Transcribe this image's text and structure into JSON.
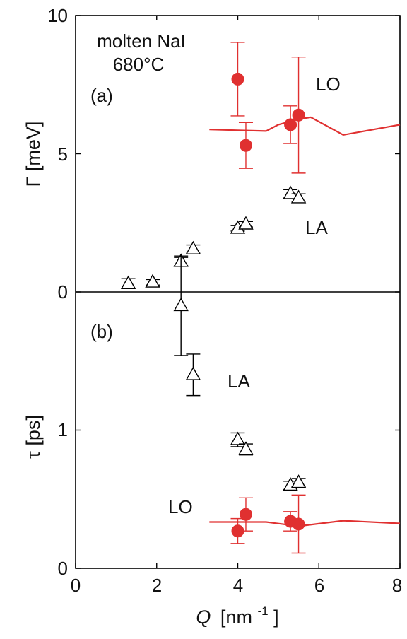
{
  "chart_data": [
    {
      "panel": "(a)",
      "type": "scatter",
      "annotations": [
        "molten NaI",
        "680°C",
        "(a)"
      ],
      "ylabel": "Γ [meV]",
      "xlim": [
        0,
        8
      ],
      "ylim": [
        0,
        10
      ],
      "yticks": [
        0,
        5,
        10
      ],
      "series": [
        {
          "name": "LO",
          "marker": "filled-circle",
          "color": "#e03030",
          "points": [
            {
              "x": 4.0,
              "y": 7.7,
              "err": 1.33
            },
            {
              "x": 4.2,
              "y": 5.3,
              "err": 0.83
            },
            {
              "x": 5.3,
              "y": 6.05,
              "err": 0.68
            },
            {
              "x": 5.5,
              "y": 6.4,
              "err": 2.1
            }
          ]
        },
        {
          "name": "LA",
          "marker": "open-triangle",
          "color": "#000000",
          "points": [
            {
              "x": 1.3,
              "y": 0.3,
              "err": 0.18
            },
            {
              "x": 1.9,
              "y": 0.35,
              "err": 0.1
            },
            {
              "x": 2.6,
              "y": 1.1,
              "err": 0.15
            },
            {
              "x": 2.9,
              "y": 1.55,
              "err": 0.15
            },
            {
              "x": 4.0,
              "y": 2.3,
              "err": 0.1
            },
            {
              "x": 4.2,
              "y": 2.45,
              "err": 0.1
            },
            {
              "x": 5.3,
              "y": 3.55,
              "err": 0.15
            },
            {
              "x": 5.5,
              "y": 3.4,
              "err": 0.15
            }
          ]
        },
        {
          "name": "LO",
          "style": "line",
          "color": "#e03030",
          "points": [
            {
              "x": 3.3,
              "y": 5.88
            },
            {
              "x": 4.0,
              "y": 5.85
            },
            {
              "x": 4.7,
              "y": 5.82
            },
            {
              "x": 5.0,
              "y": 6.05
            },
            {
              "x": 5.5,
              "y": 6.25
            },
            {
              "x": 5.8,
              "y": 6.32
            },
            {
              "x": 6.6,
              "y": 5.68
            },
            {
              "x": 8.0,
              "y": 6.05
            }
          ]
        }
      ]
    },
    {
      "panel": "(b)",
      "type": "scatter",
      "annotations": [
        "(b)"
      ],
      "xlabel": "Q [nm⁻¹]",
      "ylabel": "τ [ps]",
      "xlim": [
        0,
        8
      ],
      "ylim": [
        0,
        2
      ],
      "yticks": [
        0,
        1
      ],
      "xticks": [
        0,
        2,
        4,
        6,
        8
      ],
      "series": [
        {
          "name": "LA",
          "marker": "open-triangle",
          "color": "#000000",
          "points": [
            {
              "x": 2.6,
              "y": 1.9,
              "err": 0.36
            },
            {
              "x": 2.9,
              "y": 1.4,
              "err": 0.15
            },
            {
              "x": 4.0,
              "y": 0.93,
              "err": 0.05
            },
            {
              "x": 4.2,
              "y": 0.86,
              "err": 0.04
            },
            {
              "x": 5.3,
              "y": 0.6,
              "err": 0.03
            },
            {
              "x": 5.5,
              "y": 0.62,
              "err": 0.03
            }
          ]
        },
        {
          "name": "LO",
          "marker": "filled-circle",
          "color": "#e03030",
          "points": [
            {
              "x": 4.0,
              "y": 0.27,
              "err": 0.09
            },
            {
              "x": 4.2,
              "y": 0.39,
              "err": 0.12
            },
            {
              "x": 5.3,
              "y": 0.34,
              "err": 0.07
            },
            {
              "x": 5.5,
              "y": 0.32,
              "err": 0.21
            }
          ]
        },
        {
          "name": "LO",
          "style": "line",
          "color": "#e03030",
          "points": [
            {
              "x": 3.3,
              "y": 0.335
            },
            {
              "x": 4.7,
              "y": 0.335
            },
            {
              "x": 5.5,
              "y": 0.305
            },
            {
              "x": 6.6,
              "y": 0.345
            },
            {
              "x": 8.0,
              "y": 0.325
            }
          ]
        }
      ]
    }
  ],
  "labels": {
    "a_title1": "molten NaI",
    "a_title2": "680°C",
    "a_panel": "(a)",
    "a_lo": "LO",
    "a_la": "LA",
    "b_panel": "(b)",
    "b_la": "LA",
    "b_lo": "LO",
    "ylabel_a": "Γ [meV]",
    "ylabel_b": "τ [ps]",
    "xlabel_main": "Q",
    "xlabel_unit": "[nm",
    "xlabel_exp": "-1",
    "xlabel_close": "]",
    "yticks_a": [
      "0",
      "5",
      "10"
    ],
    "yticks_b": [
      "0",
      "1"
    ],
    "xticks": [
      "0",
      "2",
      "4",
      "6",
      "8"
    ]
  }
}
